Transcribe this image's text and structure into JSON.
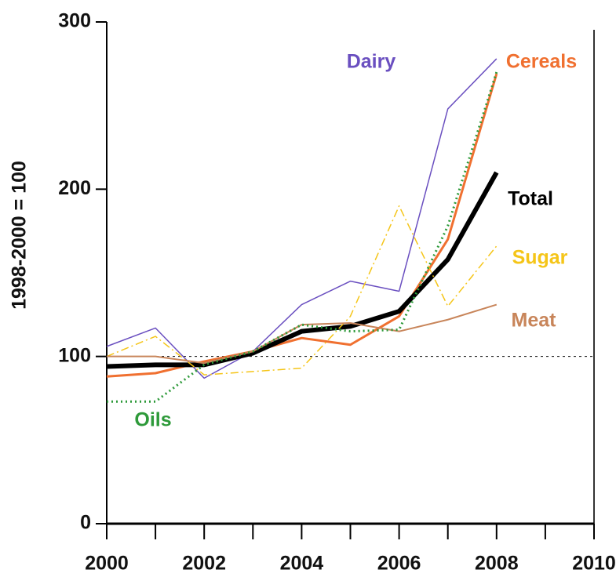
{
  "chart_data": {
    "type": "line",
    "y_label": "1998-2000 = 100",
    "xlim": [
      2000,
      2010
    ],
    "xticks": [
      2000,
      2002,
      2004,
      2006,
      2008,
      2010
    ],
    "xminorticks": [
      2001,
      2003,
      2005,
      2007,
      2009
    ],
    "ylim": [
      0,
      300
    ],
    "yticks": [
      0,
      100,
      200,
      300
    ],
    "reference_line": 100,
    "x": [
      2000,
      2001,
      2002,
      2003,
      2004,
      2005,
      2006,
      2007,
      2008
    ],
    "series": [
      {
        "name": "Dairy",
        "color": "#6a4fc0",
        "dash": "solid",
        "linewidth": 1.5,
        "values": [
          106,
          117,
          87,
          103,
          131,
          145,
          139,
          248,
          278
        ]
      },
      {
        "name": "Cereals",
        "color": "#f07030",
        "dash": "solid",
        "linewidth": 3,
        "values": [
          88,
          90,
          97,
          103,
          111,
          107,
          124,
          170,
          269
        ]
      },
      {
        "name": "Total",
        "color": "#000000",
        "dash": "solid",
        "linewidth": 6,
        "values": [
          94,
          95,
          95,
          102,
          115,
          118,
          127,
          158,
          210
        ]
      },
      {
        "name": "Sugar",
        "color": "#f5c518",
        "dash": "dashdot",
        "linewidth": 1.5,
        "values": [
          100,
          112,
          89,
          91,
          93,
          124,
          190,
          130,
          166
        ]
      },
      {
        "name": "Meat",
        "color": "#c8855a",
        "dash": "solid",
        "linewidth": 2,
        "values": [
          100,
          100,
          96,
          103,
          119,
          120,
          115,
          122,
          131
        ]
      },
      {
        "name": "Oils",
        "color": "#2e9a3a",
        "dash": "dotted",
        "linewidth": 3,
        "values": [
          73,
          73,
          95,
          103,
          119,
          115,
          116,
          178,
          270
        ]
      }
    ]
  }
}
